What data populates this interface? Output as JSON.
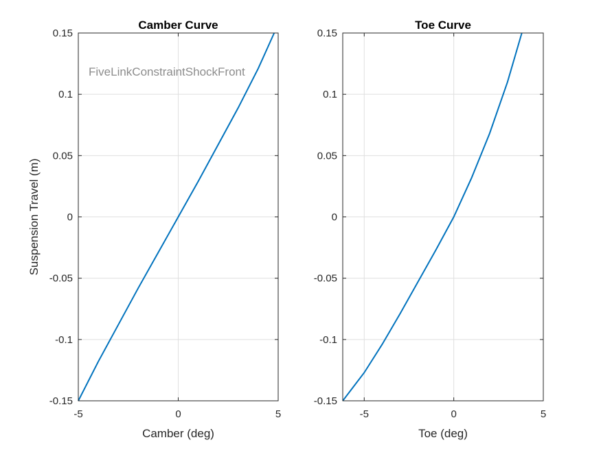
{
  "chart_data": [
    {
      "type": "line",
      "title": "Camber Curve",
      "xlabel": "Camber (deg)",
      "ylabel": "Suspension Travel (m)",
      "xlim": [
        -5,
        5
      ],
      "ylim": [
        -0.15,
        0.15
      ],
      "xticks": [
        -5,
        0,
        5
      ],
      "yticks": [
        -0.15,
        -0.1,
        -0.05,
        0,
        0.05,
        0.1,
        0.15
      ],
      "xtick_labels": [
        "-5",
        "0",
        "5"
      ],
      "ytick_labels": [
        "-0.15",
        "-0.1",
        "-0.05",
        "0",
        "0.05",
        "0.1",
        "0.15"
      ],
      "grid": true,
      "annotation": "FiveLinkConstraintShockFront",
      "series": [
        {
          "color": "#0072BD",
          "x": [
            -5.0,
            -4.0,
            -3.0,
            -2.0,
            -1.0,
            0.0,
            1.0,
            2.0,
            3.0,
            4.0,
            4.8
          ],
          "y": [
            -0.15,
            -0.118,
            -0.088,
            -0.058,
            -0.029,
            0.0,
            0.029,
            0.059,
            0.089,
            0.121,
            0.15
          ]
        }
      ]
    },
    {
      "type": "line",
      "title": "Toe Curve",
      "xlabel": "Toe (deg)",
      "ylabel": "",
      "xlim": [
        -6.2,
        5
      ],
      "ylim": [
        -0.15,
        0.15
      ],
      "xticks": [
        -5,
        0,
        5
      ],
      "yticks": [
        -0.15,
        -0.1,
        -0.05,
        0,
        0.05,
        0.1,
        0.15
      ],
      "xtick_labels": [
        "-5",
        "0",
        "5"
      ],
      "ytick_labels": [
        "-0.15",
        "-0.1",
        "-0.05",
        "0",
        "0.05",
        "0.1",
        "0.15"
      ],
      "grid": true,
      "series": [
        {
          "color": "#0072BD",
          "x": [
            -6.2,
            -5.0,
            -4.0,
            -3.0,
            -2.0,
            -1.0,
            0.0,
            1.0,
            2.0,
            3.0,
            3.8
          ],
          "y": [
            -0.15,
            -0.127,
            -0.104,
            -0.079,
            -0.053,
            -0.027,
            0.0,
            0.032,
            0.068,
            0.11,
            0.15
          ]
        }
      ]
    }
  ]
}
